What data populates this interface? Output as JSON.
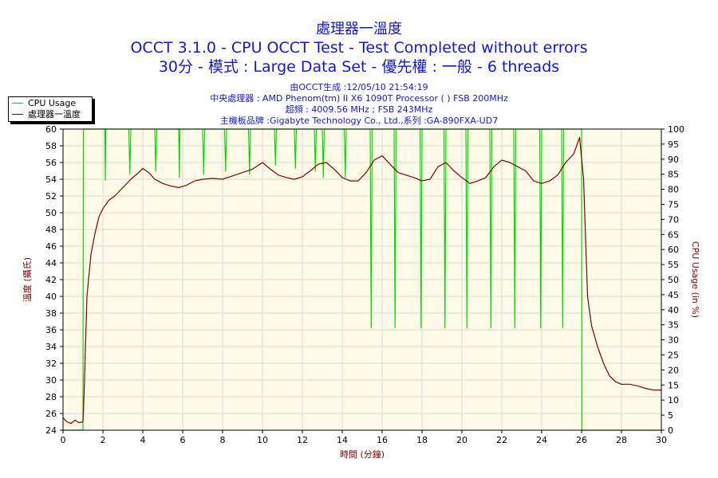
{
  "header": {
    "title1": "處理器一溫度",
    "title2": "OCCT 3.1.0 - CPU OCCT Test - Test Completed without errors",
    "title3": "30分 - 模式 : Large Data Set - 優先權 : 一般 - 6 threads",
    "info1": "由OCCT生成 :12/05/10 21:54:19",
    "info2": "中央處理器 : AMD Phenom(tm) II X6 1090T Processor (  ) FSB 200MHz",
    "info3": "超頻 : 4009.56 MHz ; FSB 243MHz",
    "info4": "主機板品牌 :Gigabyte Technology Co., Ltd.,系列 :GA-890FXA-UD7"
  },
  "colors": {
    "cpu_usage": "#00dd00",
    "temperature": "#800000",
    "plot_bg": "#fffbe8",
    "grid": "#d8d8d8",
    "text_blue": "#1515d9"
  },
  "chart_data": {
    "type": "line",
    "xlabel": "時間 (分鐘)",
    "ylabel_left": "溫度 (攝氏)",
    "ylabel_right": "CPU Usage (in %)",
    "xlim": [
      0,
      30
    ],
    "ylim_left": [
      24,
      60
    ],
    "ylim_right": [
      0,
      100
    ],
    "x_ticks": [
      0,
      2,
      4,
      6,
      8,
      10,
      12,
      14,
      16,
      18,
      20,
      22,
      24,
      26,
      28,
      30
    ],
    "y_ticks_left": [
      24,
      26,
      28,
      30,
      32,
      34,
      36,
      38,
      40,
      42,
      44,
      46,
      48,
      50,
      52,
      54,
      56,
      58,
      60
    ],
    "y_ticks_right": [
      0,
      5,
      10,
      15,
      20,
      25,
      30,
      35,
      40,
      45,
      50,
      55,
      60,
      65,
      70,
      75,
      80,
      85,
      90,
      95,
      100
    ],
    "grid": true,
    "legend_position": "top-left",
    "series": [
      {
        "name": "CPU Usage",
        "axis": "right",
        "x": [
          0,
          1.0,
          1.02,
          1.05,
          2.1,
          2.12,
          2.15,
          3.3,
          3.35,
          3.4,
          4.6,
          4.65,
          4.7,
          5.8,
          5.83,
          5.86,
          7.0,
          7.05,
          7.1,
          8.1,
          8.15,
          8.2,
          9.3,
          9.35,
          9.4,
          10.6,
          10.65,
          10.7,
          11.6,
          11.65,
          11.7,
          12.6,
          12.65,
          12.7,
          13.0,
          13.05,
          13.1,
          14.1,
          14.15,
          14.2,
          15.4,
          15.45,
          15.5,
          16.6,
          16.65,
          16.7,
          17.9,
          17.95,
          18.0,
          19.1,
          19.15,
          19.2,
          20.2,
          20.25,
          20.3,
          21.4,
          21.45,
          21.5,
          22.6,
          22.65,
          22.7,
          23.9,
          23.95,
          24.0,
          25.0,
          25.05,
          25.1,
          26.0,
          26.02,
          26.05,
          30
        ],
        "values": [
          0,
          0,
          100,
          100,
          100,
          83,
          100,
          100,
          85,
          100,
          100,
          86,
          100,
          100,
          84,
          100,
          100,
          85,
          100,
          100,
          86,
          100,
          100,
          85,
          100,
          100,
          88,
          100,
          100,
          87,
          100,
          100,
          86,
          100,
          100,
          84,
          100,
          100,
          84,
          100,
          100,
          34,
          100,
          100,
          34,
          100,
          100,
          34,
          100,
          100,
          34,
          100,
          100,
          34,
          100,
          100,
          34,
          100,
          100,
          34,
          100,
          100,
          34,
          100,
          100,
          34,
          100,
          100,
          0,
          0,
          0
        ]
      },
      {
        "name": "處理器一溫度",
        "axis": "left",
        "x": [
          0,
          0.2,
          0.4,
          0.6,
          0.8,
          1.0,
          1.05,
          1.1,
          1.2,
          1.4,
          1.6,
          1.8,
          2.0,
          2.3,
          2.6,
          3.0,
          3.4,
          3.8,
          4.0,
          4.3,
          4.6,
          5.0,
          5.4,
          5.8,
          6.2,
          6.6,
          7.0,
          7.5,
          8.0,
          8.5,
          9.0,
          9.5,
          10.0,
          10.4,
          10.8,
          11.2,
          11.6,
          12.0,
          12.4,
          12.8,
          13.2,
          13.6,
          14.0,
          14.4,
          14.8,
          15.2,
          15.6,
          16.0,
          16.4,
          16.8,
          17.2,
          17.6,
          18.0,
          18.4,
          18.8,
          19.2,
          19.6,
          20.0,
          20.4,
          20.8,
          21.2,
          21.6,
          22.0,
          22.4,
          22.8,
          23.2,
          23.6,
          24.0,
          24.4,
          24.8,
          25.2,
          25.6,
          25.9,
          26.1,
          26.3,
          26.5,
          26.8,
          27.1,
          27.4,
          27.7,
          28.0,
          28.4,
          28.8,
          29.2,
          29.6,
          30.0
        ],
        "values": [
          25.5,
          25.0,
          24.8,
          25.2,
          24.9,
          25.0,
          28.0,
          32.0,
          40.0,
          45.0,
          47.5,
          49.5,
          50.5,
          51.5,
          52.0,
          53.0,
          54.0,
          54.8,
          55.3,
          54.8,
          54.0,
          53.5,
          53.2,
          53.0,
          53.3,
          53.8,
          54.0,
          54.1,
          54.0,
          54.4,
          54.8,
          55.2,
          56.0,
          55.2,
          54.5,
          54.2,
          54.0,
          54.3,
          55.0,
          55.8,
          56.0,
          55.2,
          54.2,
          53.8,
          53.8,
          54.8,
          56.3,
          56.8,
          55.8,
          54.8,
          54.5,
          54.2,
          53.8,
          54.0,
          55.5,
          56.0,
          55.0,
          54.2,
          53.5,
          53.8,
          54.2,
          55.5,
          56.3,
          56.0,
          55.5,
          55.0,
          53.8,
          53.5,
          53.8,
          54.5,
          56.0,
          57.0,
          59.0,
          54.0,
          40.0,
          36.5,
          34.0,
          32.0,
          30.5,
          29.8,
          29.5,
          29.5,
          29.3,
          29.0,
          28.8,
          28.8
        ]
      }
    ]
  }
}
